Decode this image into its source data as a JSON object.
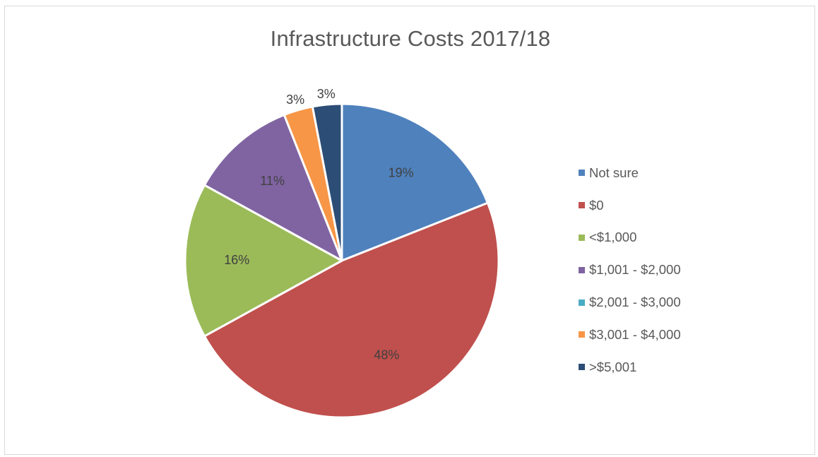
{
  "chart_data": {
    "type": "pie",
    "title": "Infrastructure Costs 2017/18",
    "legend_position": "right",
    "categories": [
      "Not sure",
      "$0",
      "<$1,000",
      "$1,001 - $2,000",
      "$2,001 - $3,000",
      "$3,001 - $4,000",
      ">$5,001"
    ],
    "values": [
      19,
      48,
      16,
      11,
      0,
      3,
      3
    ],
    "data_labels": [
      "19%",
      "48%",
      "16%",
      "11%",
      "",
      "3%",
      "3%"
    ],
    "colors": [
      "#4f81bd",
      "#c0504d",
      "#9bbb59",
      "#8064a2",
      "#4bacc6",
      "#f79646",
      "#2c4d75"
    ]
  }
}
